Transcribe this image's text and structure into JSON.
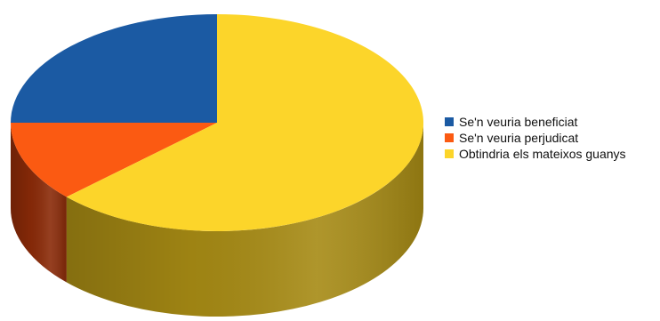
{
  "chart_data": {
    "type": "pie",
    "style": "3d",
    "title": "",
    "categories": [
      "Se'n veuria beneficiat",
      "Se'n veuria perjudicat",
      "Obtindria els mateixos guanys"
    ],
    "values": [
      25,
      12,
      63
    ],
    "colors": [
      "#1b5aa3",
      "#fb5a12",
      "#fcd52a"
    ],
    "side_colors": [
      "#0f3a6a",
      "#8a2a08",
      "#a68a14"
    ],
    "legend_position": "right"
  }
}
